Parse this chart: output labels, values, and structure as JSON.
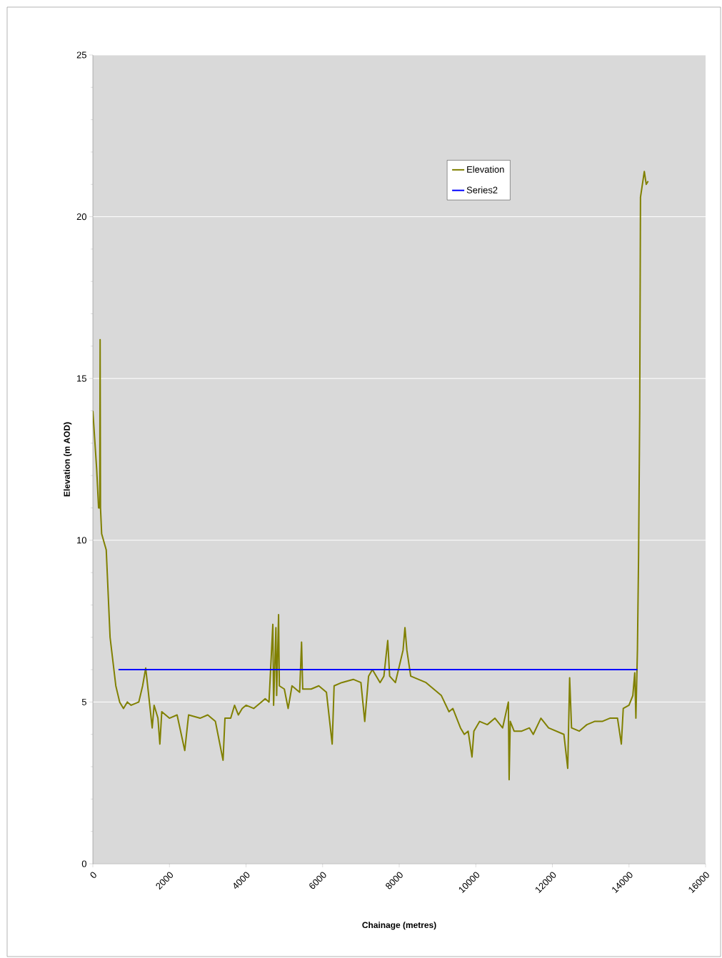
{
  "chart_data": {
    "type": "line",
    "xlabel": "Chainage (metres)",
    "ylabel": "Elevation (m AOD)",
    "xlim": [
      0,
      16000
    ],
    "ylim": [
      0,
      25
    ],
    "xticks": [
      0,
      2000,
      4000,
      6000,
      8000,
      10000,
      12000,
      14000,
      16000
    ],
    "yticks": [
      0,
      5,
      10,
      15,
      20,
      25
    ],
    "grid": "y",
    "legend": "top right",
    "marker": "none",
    "line_style": "solid",
    "series": [
      {
        "name": "Elevation",
        "color": "#808000",
        "x": [
          0,
          100,
          150,
          180,
          190,
          200,
          230,
          350,
          450,
          600,
          700,
          800,
          900,
          1000,
          1200,
          1300,
          1380,
          1450,
          1550,
          1600,
          1700,
          1750,
          1800,
          2000,
          2200,
          2400,
          2500,
          2800,
          3000,
          3200,
          3400,
          3450,
          3600,
          3700,
          3800,
          3900,
          4000,
          4200,
          4400,
          4500,
          4600,
          4700,
          4720,
          4780,
          4800,
          4850,
          4870,
          5000,
          5100,
          5200,
          5400,
          5450,
          5480,
          5700,
          5900,
          6100,
          6250,
          6300,
          6500,
          6800,
          7000,
          7100,
          7200,
          7300,
          7500,
          7600,
          7700,
          7750,
          7900,
          8100,
          8150,
          8200,
          8300,
          8500,
          8700,
          8900,
          9100,
          9300,
          9400,
          9600,
          9700,
          9800,
          9900,
          9950,
          10100,
          10300,
          10500,
          10700,
          10850,
          10870,
          10900,
          11000,
          11200,
          11400,
          11500,
          11700,
          11900,
          12100,
          12300,
          12400,
          12450,
          12500,
          12700,
          12900,
          13100,
          13300,
          13500,
          13700,
          13800,
          13850,
          14000,
          14100,
          14150,
          14180,
          14220,
          14250,
          14280,
          14300,
          14350,
          14400,
          14450,
          14500
        ],
        "values": [
          14,
          12.2,
          11,
          11,
          16.2,
          11,
          10.2,
          9.7,
          7,
          5.5,
          5,
          4.8,
          5,
          4.9,
          5,
          5.5,
          6.05,
          5.3,
          4.2,
          4.9,
          4.5,
          3.7,
          4.7,
          4.5,
          4.6,
          3.5,
          4.6,
          4.5,
          4.6,
          4.4,
          3.2,
          4.5,
          4.5,
          4.9,
          4.6,
          4.8,
          4.9,
          4.8,
          5,
          5.1,
          5,
          7.4,
          4.9,
          7.3,
          5.2,
          7.7,
          5.5,
          5.4,
          4.8,
          5.5,
          5.3,
          6.85,
          5.4,
          5.4,
          5.5,
          5.3,
          3.7,
          5.5,
          5.6,
          5.7,
          5.6,
          4.4,
          5.8,
          6,
          5.6,
          5.8,
          6.9,
          5.8,
          5.6,
          6.6,
          7.3,
          6.6,
          5.8,
          5.7,
          5.6,
          5.4,
          5.2,
          4.7,
          4.8,
          4.2,
          4,
          4.1,
          3.3,
          4.1,
          4.4,
          4.3,
          4.5,
          4.2,
          5,
          2.6,
          4.4,
          4.1,
          4.1,
          4.2,
          4,
          4.5,
          4.2,
          4.1,
          4,
          2.95,
          5.75,
          4.2,
          4.1,
          4.3,
          4.4,
          4.4,
          4.5,
          4.5,
          3.7,
          4.8,
          4.9,
          5.2,
          5.9,
          4.5,
          6.6,
          9.5,
          14,
          20.6,
          21,
          21.4,
          21,
          21.1
        ]
      },
      {
        "name": "Series2",
        "color": "#0000ff",
        "x": [
          670,
          14220
        ],
        "values": [
          6,
          6
        ]
      }
    ]
  }
}
